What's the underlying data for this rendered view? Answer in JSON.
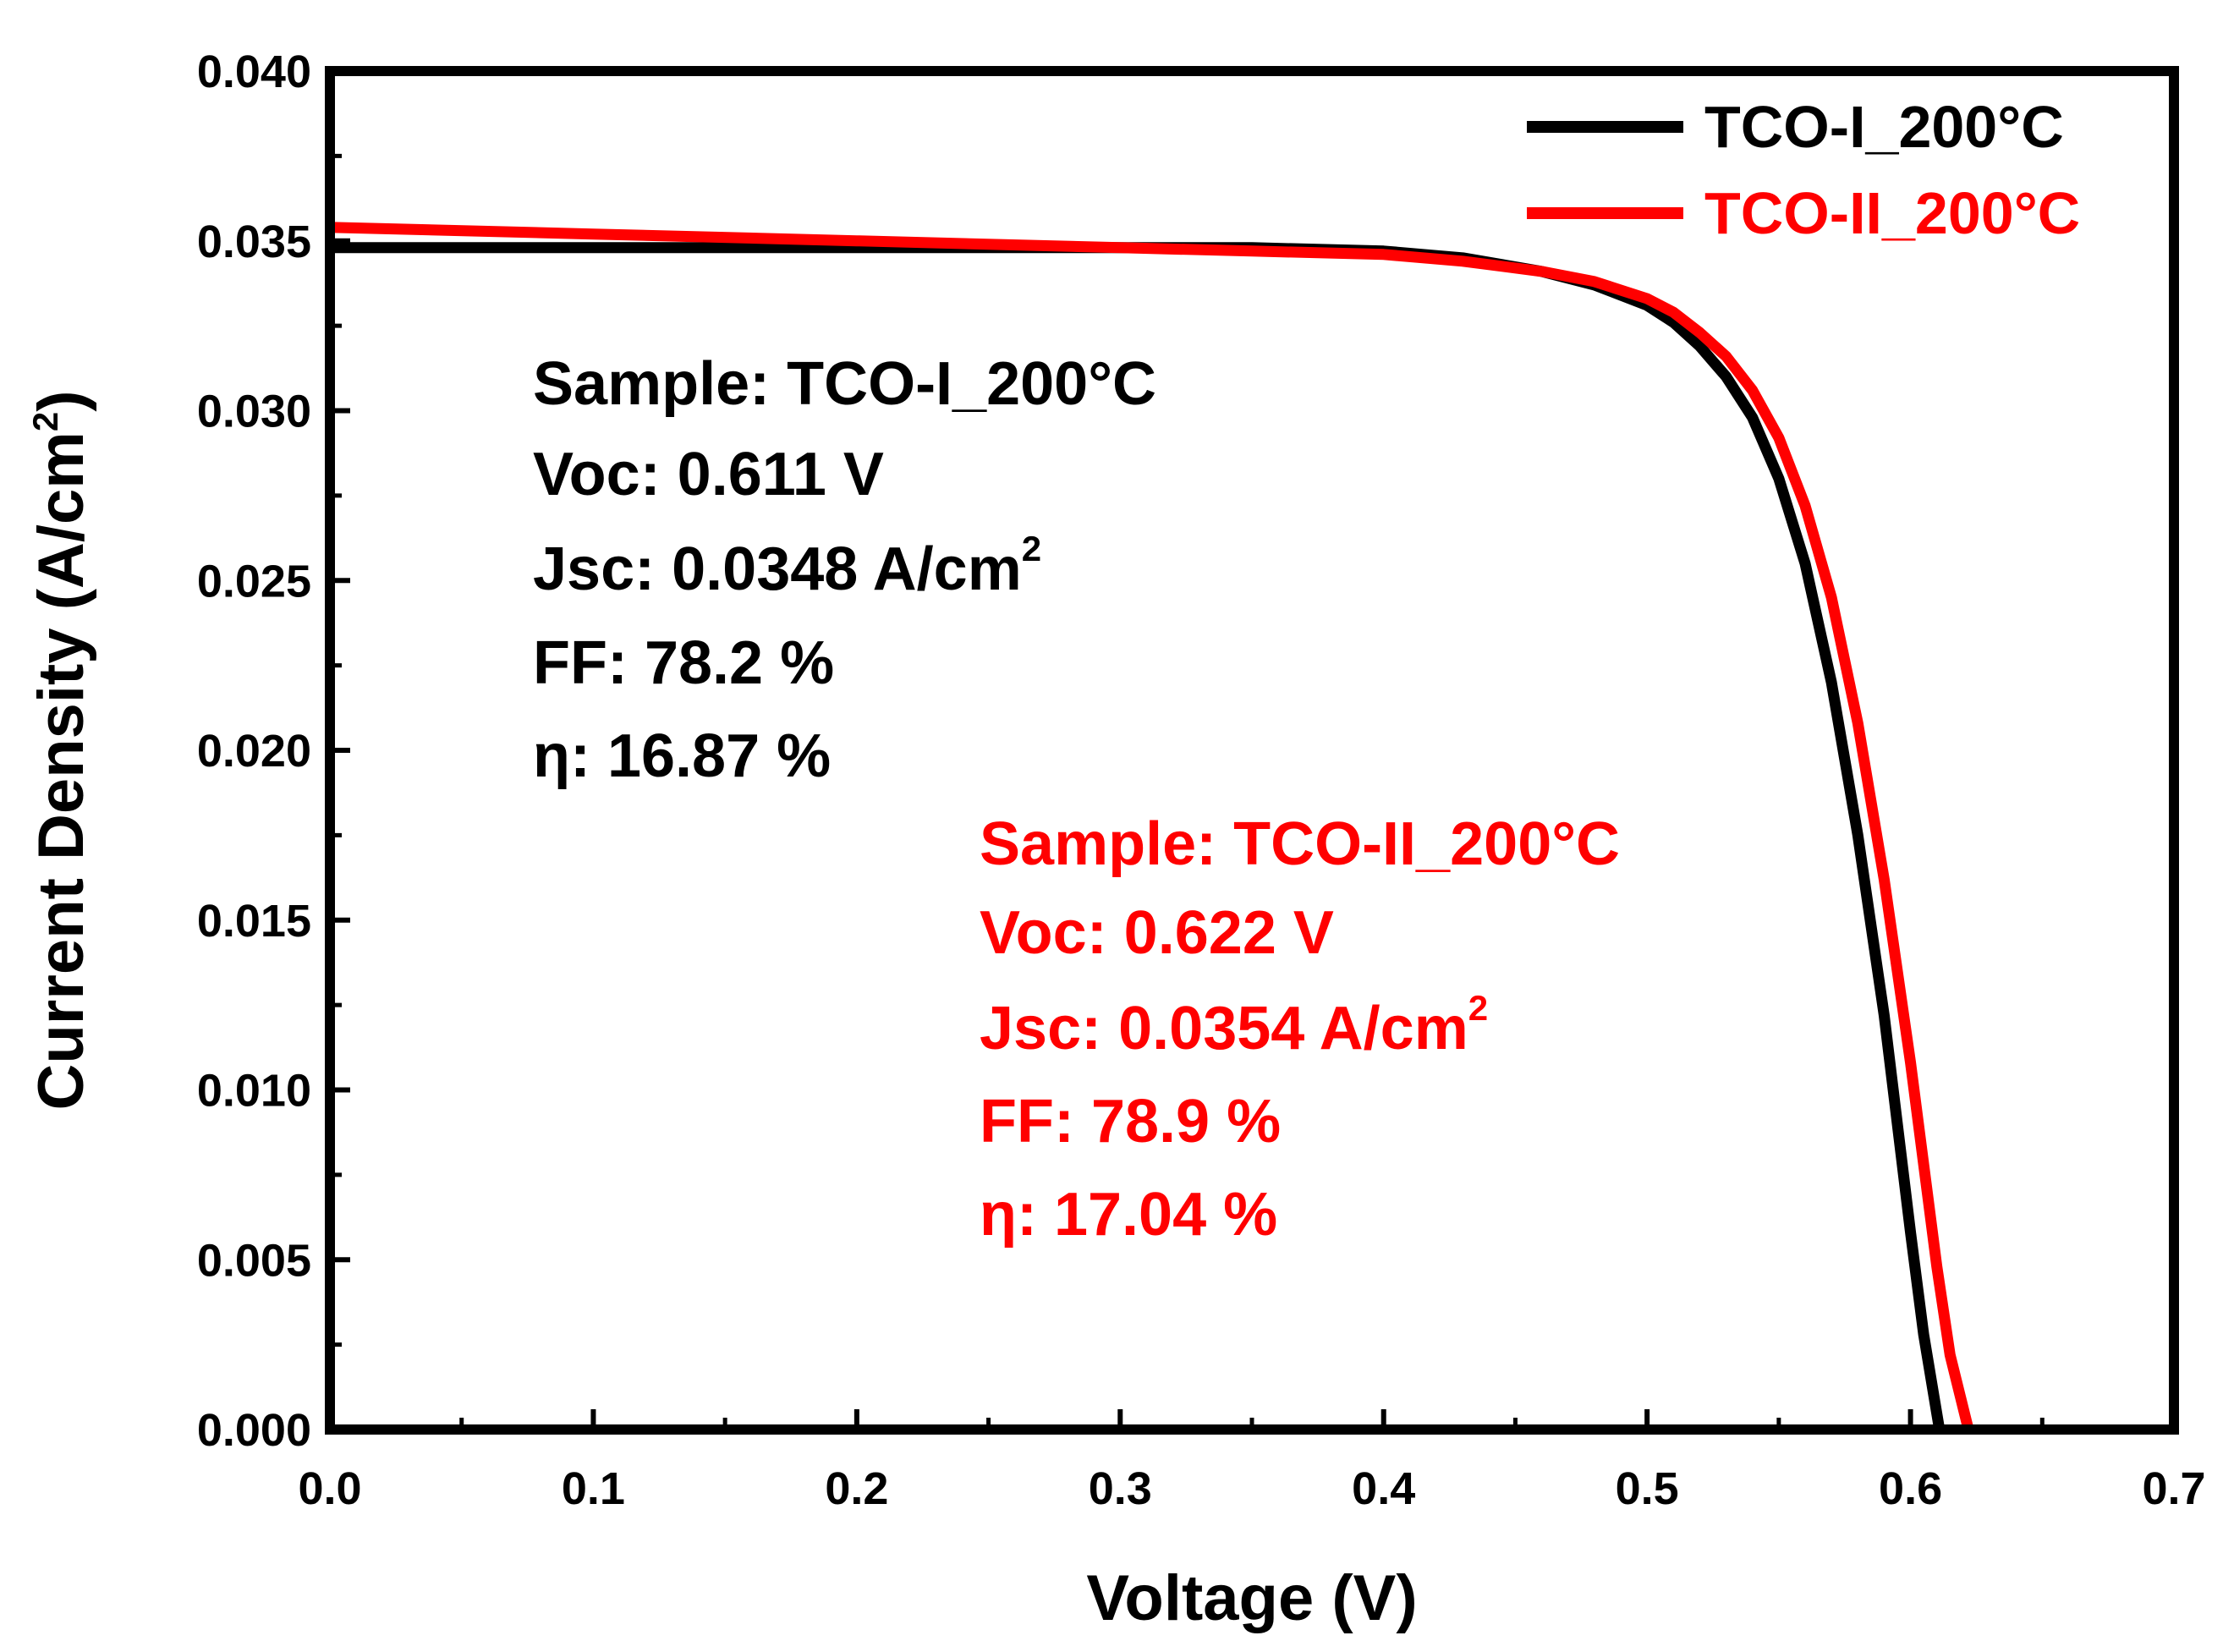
{
  "chart_data": {
    "type": "line",
    "title": "",
    "xlabel": "Voltage (V)",
    "ylabel": {
      "main": "Current Density (A/cm",
      "sup": "2",
      "close": ")"
    },
    "xlim": [
      0.0,
      0.7
    ],
    "ylim": [
      0.0,
      0.04
    ],
    "grid": false,
    "legend_position": "top-right",
    "x_ticks": [
      "0.0",
      "0.1",
      "0.2",
      "0.3",
      "0.4",
      "0.5",
      "0.6",
      "0.7"
    ],
    "y_ticks": [
      "0.000",
      "0.005",
      "0.010",
      "0.015",
      "0.020",
      "0.025",
      "0.030",
      "0.035",
      "0.040"
    ],
    "series": [
      {
        "name": "TCO-I_200°C",
        "color": "#000000",
        "x": [
          0.0,
          0.1,
          0.2,
          0.3,
          0.35,
          0.4,
          0.43,
          0.46,
          0.48,
          0.5,
          0.51,
          0.52,
          0.53,
          0.54,
          0.55,
          0.56,
          0.57,
          0.58,
          0.59,
          0.6,
          0.605,
          0.611
        ],
        "y": [
          0.0348,
          0.0348,
          0.0348,
          0.0348,
          0.0348,
          0.0347,
          0.0345,
          0.0341,
          0.0337,
          0.0331,
          0.0326,
          0.0319,
          0.031,
          0.0298,
          0.028,
          0.0255,
          0.022,
          0.0175,
          0.0122,
          0.0058,
          0.0028,
          0.0
        ]
      },
      {
        "name": "TCO-II_200°C",
        "color": "#ff0000",
        "x": [
          0.0,
          0.1,
          0.2,
          0.3,
          0.35,
          0.4,
          0.43,
          0.46,
          0.48,
          0.5,
          0.51,
          0.52,
          0.53,
          0.54,
          0.55,
          0.56,
          0.57,
          0.58,
          0.59,
          0.6,
          0.61,
          0.615,
          0.622
        ],
        "y": [
          0.0354,
          0.0352,
          0.035,
          0.0348,
          0.0347,
          0.0346,
          0.0344,
          0.0341,
          0.0338,
          0.0333,
          0.0329,
          0.0323,
          0.0316,
          0.0306,
          0.0292,
          0.0272,
          0.0245,
          0.0208,
          0.0162,
          0.0108,
          0.0048,
          0.0022,
          0.0
        ]
      }
    ],
    "annotations": [
      {
        "color": "#000000",
        "lines": [
          {
            "text": "Sample: TCO-I_200°C"
          },
          {
            "text": "Voc: 0.611 V"
          },
          {
            "text": "Jsc: 0.0348 A/cm",
            "sup": "2"
          },
          {
            "text": "FF: 78.2 %"
          },
          {
            "text": "η: 16.87 %"
          }
        ]
      },
      {
        "color": "#ff0000",
        "lines": [
          {
            "text": "Sample: TCO-II_200°C"
          },
          {
            "text": "Voc: 0.622 V"
          },
          {
            "text": "Jsc: 0.0354 A/cm",
            "sup": "2"
          },
          {
            "text": "FF: 78.9 %"
          },
          {
            "text": "η: 17.04 %"
          }
        ]
      }
    ]
  }
}
